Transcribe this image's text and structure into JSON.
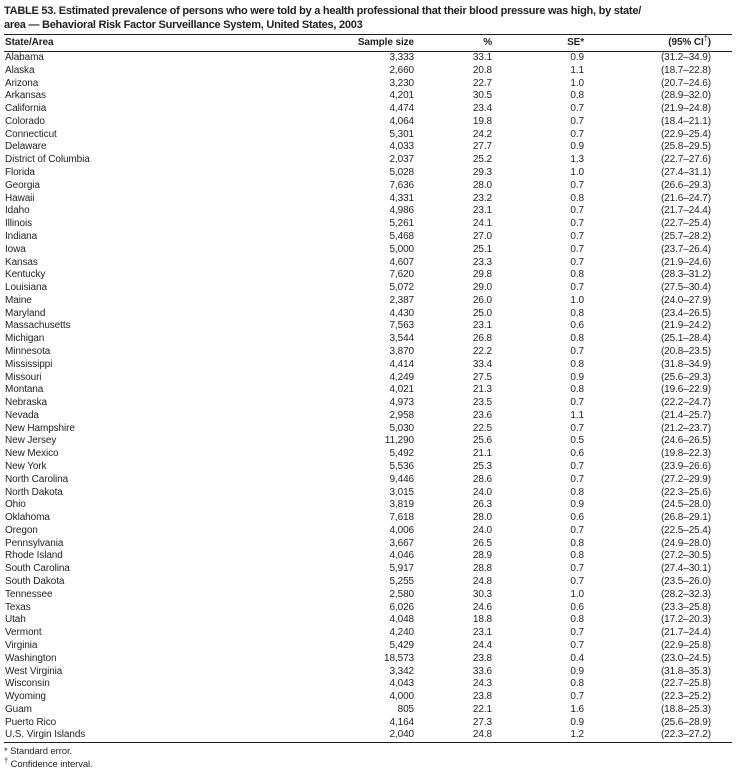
{
  "title_line1": "TABLE 53. Estimated prevalence of persons who were told by a health professional that their blood pressure was high, by state/",
  "title_line2": "area — Behavioral Risk Factor Surveillance System, United States, 2003",
  "table": {
    "columns": {
      "state": "State/Area",
      "sample_size": "Sample size",
      "percent": "%",
      "se": "SE*",
      "ci_prefix": "(95% CI",
      "ci_sup": "†",
      "ci_suffix": ")"
    },
    "rows": [
      {
        "area": "Alabama",
        "sample_size": "3,333",
        "percent": "33.1",
        "se": "0.9",
        "ci": "(31.2–34.9)"
      },
      {
        "area": "Alaska",
        "sample_size": "2,660",
        "percent": "20.8",
        "se": "1.1",
        "ci": "(18.7–22.8)"
      },
      {
        "area": "Arizona",
        "sample_size": "3,230",
        "percent": "22.7",
        "se": "1.0",
        "ci": "(20.7–24.6)"
      },
      {
        "area": "Arkansas",
        "sample_size": "4,201",
        "percent": "30.5",
        "se": "0.8",
        "ci": "(28.9–32.0)"
      },
      {
        "area": "California",
        "sample_size": "4,474",
        "percent": "23.4",
        "se": "0.7",
        "ci": "(21.9–24.8)"
      },
      {
        "area": "Colorado",
        "sample_size": "4,064",
        "percent": "19.8",
        "se": "0.7",
        "ci": "(18.4–21.1)"
      },
      {
        "area": "Connecticut",
        "sample_size": "5,301",
        "percent": "24.2",
        "se": "0.7",
        "ci": "(22.9–25.4)"
      },
      {
        "area": "Delaware",
        "sample_size": "4,033",
        "percent": "27.7",
        "se": "0.9",
        "ci": "(25.8–29.5)"
      },
      {
        "area": "District of Columbia",
        "sample_size": "2,037",
        "percent": "25.2",
        "se": "1.3",
        "ci": "(22.7–27.6)"
      },
      {
        "area": "Florida",
        "sample_size": "5,028",
        "percent": "29.3",
        "se": "1.0",
        "ci": "(27.4–31.1)"
      },
      {
        "area": "Georgia",
        "sample_size": "7,636",
        "percent": "28.0",
        "se": "0.7",
        "ci": "(26.6–29.3)"
      },
      {
        "area": "Hawaii",
        "sample_size": "4,331",
        "percent": "23.2",
        "se": "0.8",
        "ci": "(21.6–24.7)"
      },
      {
        "area": "Idaho",
        "sample_size": "4,986",
        "percent": "23.1",
        "se": "0.7",
        "ci": "(21.7–24.4)"
      },
      {
        "area": "Illinois",
        "sample_size": "5,261",
        "percent": "24.1",
        "se": "0.7",
        "ci": "(22.7–25.4)"
      },
      {
        "area": "Indiana",
        "sample_size": "5,468",
        "percent": "27.0",
        "se": "0.7",
        "ci": "(25.7–28.2)"
      },
      {
        "area": "Iowa",
        "sample_size": "5,000",
        "percent": "25.1",
        "se": "0.7",
        "ci": "(23.7–26.4)"
      },
      {
        "area": "Kansas",
        "sample_size": "4,607",
        "percent": "23.3",
        "se": "0.7",
        "ci": "(21.9–24.6)"
      },
      {
        "area": "Kentucky",
        "sample_size": "7,620",
        "percent": "29.8",
        "se": "0.8",
        "ci": "(28.3–31.2)"
      },
      {
        "area": "Louisiana",
        "sample_size": "5,072",
        "percent": "29.0",
        "se": "0.7",
        "ci": "(27.5–30.4)"
      },
      {
        "area": "Maine",
        "sample_size": "2,387",
        "percent": "26.0",
        "se": "1.0",
        "ci": "(24.0–27.9)"
      },
      {
        "area": "Maryland",
        "sample_size": "4,430",
        "percent": "25.0",
        "se": "0.8",
        "ci": "(23.4–26.5)"
      },
      {
        "area": "Massachusetts",
        "sample_size": "7,563",
        "percent": "23.1",
        "se": "0.6",
        "ci": "(21.9–24.2)"
      },
      {
        "area": "Michigan",
        "sample_size": "3,544",
        "percent": "26.8",
        "se": "0.8",
        "ci": "(25.1–28.4)"
      },
      {
        "area": "Minnesota",
        "sample_size": "3,870",
        "percent": "22.2",
        "se": "0.7",
        "ci": "(20.8–23.5)"
      },
      {
        "area": "Mississippi",
        "sample_size": "4,414",
        "percent": "33.4",
        "se": "0.8",
        "ci": "(31.8–34.9)"
      },
      {
        "area": "Missouri",
        "sample_size": "4,249",
        "percent": "27.5",
        "se": "0.9",
        "ci": "(25.6–29.3)"
      },
      {
        "area": "Montana",
        "sample_size": "4,021",
        "percent": "21.3",
        "se": "0.8",
        "ci": "(19.6–22.9)"
      },
      {
        "area": "Nebraska",
        "sample_size": "4,973",
        "percent": "23.5",
        "se": "0.7",
        "ci": "(22.2–24.7)"
      },
      {
        "area": "Nevada",
        "sample_size": "2,958",
        "percent": "23.6",
        "se": "1.1",
        "ci": "(21.4–25.7)"
      },
      {
        "area": "New Hampshire",
        "sample_size": "5,030",
        "percent": "22.5",
        "se": "0.7",
        "ci": "(21.2–23.7)"
      },
      {
        "area": "New Jersey",
        "sample_size": "11,290",
        "percent": "25.6",
        "se": "0.5",
        "ci": "(24.6–26.5)"
      },
      {
        "area": "New Mexico",
        "sample_size": "5,492",
        "percent": "21.1",
        "se": "0.6",
        "ci": "(19.8–22.3)"
      },
      {
        "area": "New York",
        "sample_size": "5,536",
        "percent": "25.3",
        "se": "0.7",
        "ci": "(23.9–26.6)"
      },
      {
        "area": "North Carolina",
        "sample_size": "9,446",
        "percent": "28.6",
        "se": "0.7",
        "ci": "(27.2–29.9)"
      },
      {
        "area": "North Dakota",
        "sample_size": "3,015",
        "percent": "24.0",
        "se": "0.8",
        "ci": "(22.3–25.6)"
      },
      {
        "area": "Ohio",
        "sample_size": "3,819",
        "percent": "26.3",
        "se": "0.9",
        "ci": "(24.5–28.0)"
      },
      {
        "area": "Oklahoma",
        "sample_size": "7,618",
        "percent": "28.0",
        "se": "0.6",
        "ci": "(26.8–29.1)"
      },
      {
        "area": "Oregon",
        "sample_size": "4,006",
        "percent": "24.0",
        "se": "0.7",
        "ci": "(22.5–25.4)"
      },
      {
        "area": "Pennsylvania",
        "sample_size": "3,667",
        "percent": "26.5",
        "se": "0.8",
        "ci": "(24.9–28.0)"
      },
      {
        "area": "Rhode Island",
        "sample_size": "4,046",
        "percent": "28.9",
        "se": "0.8",
        "ci": "(27.2–30.5)"
      },
      {
        "area": "South Carolina",
        "sample_size": "5,917",
        "percent": "28.8",
        "se": "0.7",
        "ci": "(27.4–30.1)"
      },
      {
        "area": "South Dakota",
        "sample_size": "5,255",
        "percent": "24.8",
        "se": "0.7",
        "ci": "(23.5–26.0)"
      },
      {
        "area": "Tennessee",
        "sample_size": "2,580",
        "percent": "30.3",
        "se": "1.0",
        "ci": "(28.2–32.3)"
      },
      {
        "area": "Texas",
        "sample_size": "6,026",
        "percent": "24.6",
        "se": "0.6",
        "ci": "(23.3–25.8)"
      },
      {
        "area": "Utah",
        "sample_size": "4,048",
        "percent": "18.8",
        "se": "0.8",
        "ci": "(17.2–20.3)"
      },
      {
        "area": "Vermont",
        "sample_size": "4,240",
        "percent": "23.1",
        "se": "0.7",
        "ci": "(21.7–24.4)"
      },
      {
        "area": "Virginia",
        "sample_size": "5,429",
        "percent": "24.4",
        "se": "0.7",
        "ci": "(22.9–25.8)"
      },
      {
        "area": "Washington",
        "sample_size": "18,573",
        "percent": "23.8",
        "se": "0.4",
        "ci": "(23.0–24.5)"
      },
      {
        "area": "West Virginia",
        "sample_size": "3,342",
        "percent": "33.6",
        "se": "0.9",
        "ci": "(31.8–35.3)"
      },
      {
        "area": "Wisconsin",
        "sample_size": "4,043",
        "percent": "24.3",
        "se": "0.8",
        "ci": "(22.7–25.8)"
      },
      {
        "area": "Wyoming",
        "sample_size": "4,000",
        "percent": "23.8",
        "se": "0.7",
        "ci": "(22.3–25.2)"
      },
      {
        "area": "Guam",
        "sample_size": "805",
        "percent": "22.1",
        "se": "1.6",
        "ci": "(18.8–25.3)"
      },
      {
        "area": "Puerto Rico",
        "sample_size": "4,164",
        "percent": "27.3",
        "se": "0.9",
        "ci": "(25.6–28.9)"
      },
      {
        "area": "U.S. Virgin Islands",
        "sample_size": "2,040",
        "percent": "24.8",
        "se": "1.2",
        "ci": "(22.3–27.2)"
      }
    ]
  },
  "footnotes": [
    {
      "marker": "*",
      "text": "Standard error."
    },
    {
      "marker": "†",
      "text": "Confidence interval."
    }
  ]
}
